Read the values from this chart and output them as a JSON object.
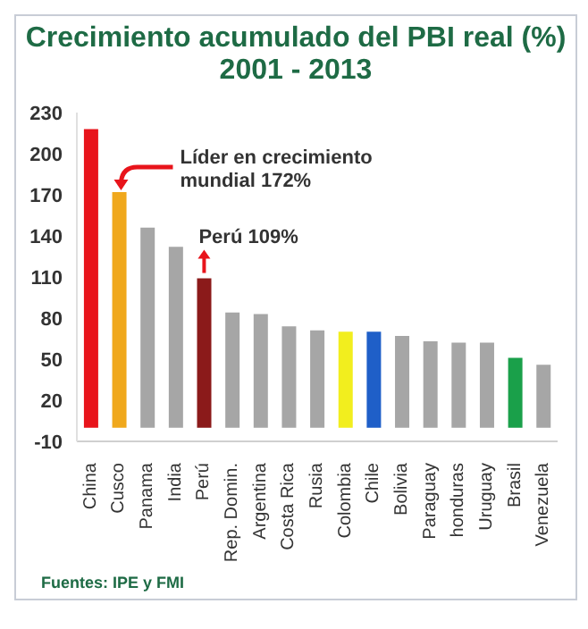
{
  "chart_data": {
    "type": "bar",
    "title": "Crecimiento acumulado del PBI real (%)",
    "subtitle": "2001 - 2013",
    "categories": [
      "China",
      "Cusco",
      "Panama",
      "India",
      "Perú",
      "Rep. Domin.",
      "Argentina",
      "Costa Rica",
      "Rusia",
      "Colombia",
      "Chile",
      "Bolivia",
      "Paraguay",
      "honduras",
      "Uruguay",
      "Brasil",
      "Venezuela"
    ],
    "values": [
      218,
      172,
      146,
      132,
      109,
      84,
      83,
      74,
      71,
      70,
      70,
      67,
      63,
      62,
      62,
      51,
      46
    ],
    "colors": [
      "#e8141b",
      "#f0a81c",
      "#a6a6a6",
      "#a6a6a6",
      "#8b1a1a",
      "#a6a6a6",
      "#a6a6a6",
      "#a6a6a6",
      "#a6a6a6",
      "#f2ee1e",
      "#1f5fc8",
      "#a6a6a6",
      "#a6a6a6",
      "#a6a6a6",
      "#a6a6a6",
      "#1aa04a",
      "#a6a6a6"
    ],
    "ylim": [
      -10,
      230
    ],
    "yticks": [
      -10,
      20,
      50,
      80,
      110,
      140,
      170,
      200,
      230
    ],
    "grid": false,
    "legend": false,
    "annotations": [
      {
        "text": "Líder en crecimiento mundial 172%",
        "x": "Cusco",
        "y": 172
      },
      {
        "text": "Perú 109%",
        "x": "Perú",
        "y": 109
      },
      "Fuentes: IPE y FMI"
    ]
  }
}
